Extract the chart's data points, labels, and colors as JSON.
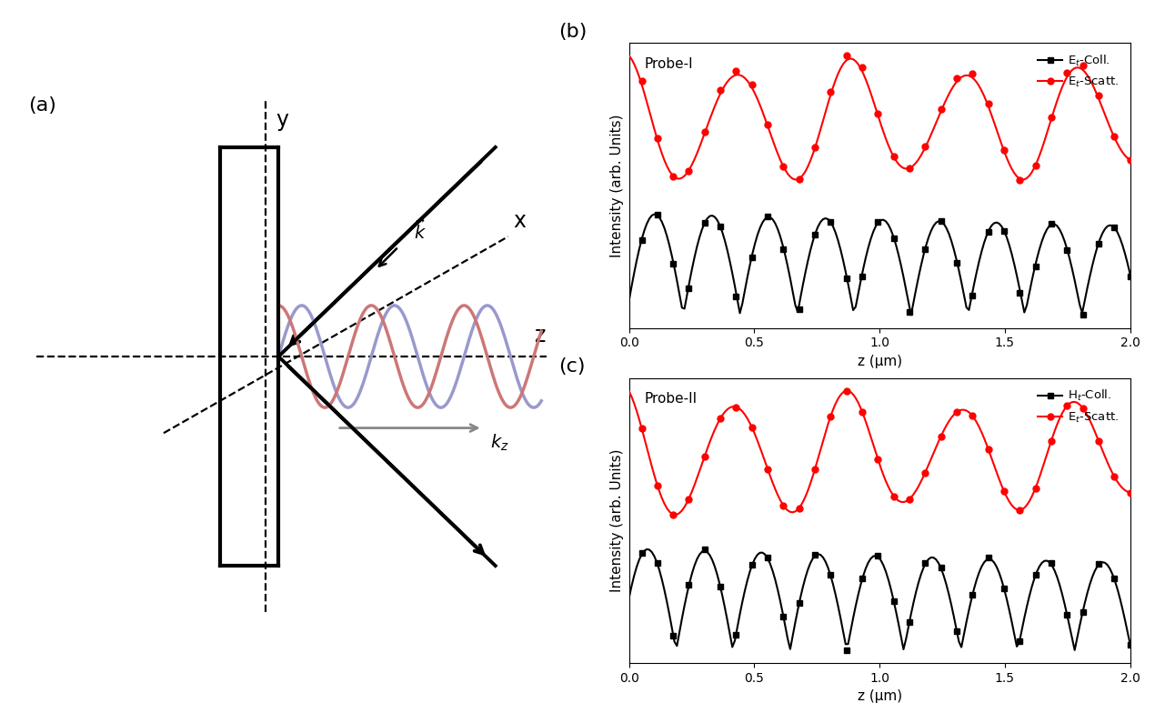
{
  "fig_width": 12.81,
  "fig_height": 7.84,
  "bg_color": "#ffffff",
  "red_color": "#ff0000",
  "black_color": "#000000",
  "blue_wave_color": "#9999cc",
  "red_wave_color": "#cc7777",
  "gray_arrow_color": "#888888",
  "xlabel": "z (μm)",
  "ylabel": "Intensity (arb. Units)",
  "xmin": 0.0,
  "xmax": 2.0,
  "xticks": [
    0.0,
    0.5,
    1.0,
    1.5,
    2.0
  ]
}
